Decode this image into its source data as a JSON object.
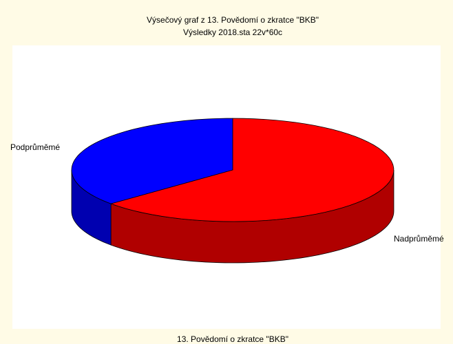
{
  "chart_data": {
    "type": "pie",
    "title": "Výsečový graf z 13. Povědomí o zkratce \"BKB\"",
    "subtitle": "Výsledky 2018.sta 22v*60c",
    "x_label": "13. Povědomí o zkratce \"BKB\"",
    "categories": [
      "Nadprůměmé",
      "Podprůměmé"
    ],
    "values": [
      14,
      8
    ],
    "colors": [
      "#ff0000",
      "#0000ff"
    ]
  }
}
